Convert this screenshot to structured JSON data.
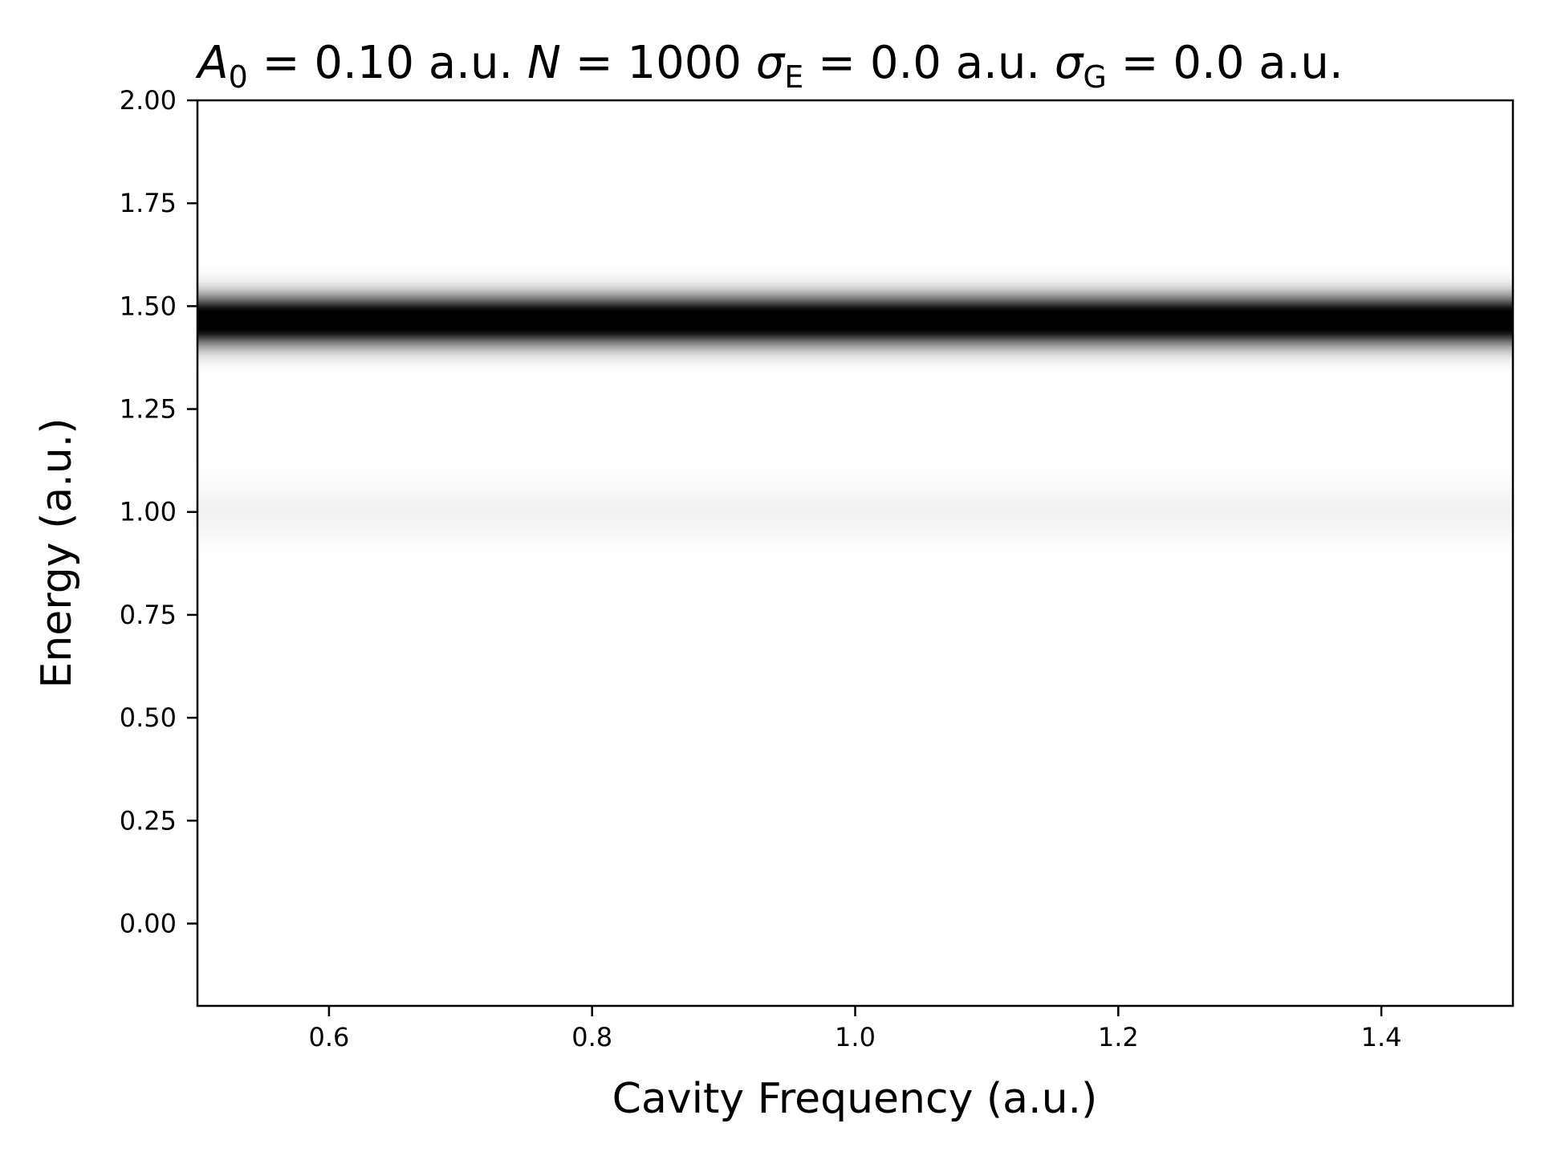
{
  "chart_data": {
    "type": "heatmap",
    "title_parts": {
      "a0_sym": "A",
      "a0_sub": "0",
      "a0_val": " = 0.10 a.u.",
      "n_sym": "N",
      "n_val": " = 1000",
      "se_sym": "σ",
      "se_sub": "E",
      "se_val": " = 0.0 a.u.",
      "sg_sym": "σ",
      "sg_sub": "G",
      "sg_val": " = 0.0 a.u."
    },
    "xlabel": "Cavity Frequency (a.u.)",
    "ylabel": "Energy (a.u.)",
    "xlim": [
      0.5,
      1.5
    ],
    "ylim": [
      -0.2,
      2.0
    ],
    "xticks": [
      0.6,
      0.8,
      1.0,
      1.2,
      1.4
    ],
    "xtick_labels": [
      "0.6",
      "0.8",
      "1.0",
      "1.2",
      "1.4"
    ],
    "yticks": [
      0.0,
      0.25,
      0.5,
      0.75,
      1.0,
      1.25,
      1.5,
      1.75,
      2.0
    ],
    "ytick_labels": [
      "0.00",
      "0.25",
      "0.50",
      "0.75",
      "1.00",
      "1.25",
      "1.50",
      "1.75",
      "2.00"
    ],
    "colormap": "Greys",
    "bands": [
      {
        "energy": 1.465,
        "width": 0.04,
        "intensity": 1.0
      },
      {
        "energy": 1.0,
        "width": 0.05,
        "intensity": 0.04
      }
    ],
    "colors": {
      "band": "#000000",
      "background": "#ffffff"
    }
  }
}
